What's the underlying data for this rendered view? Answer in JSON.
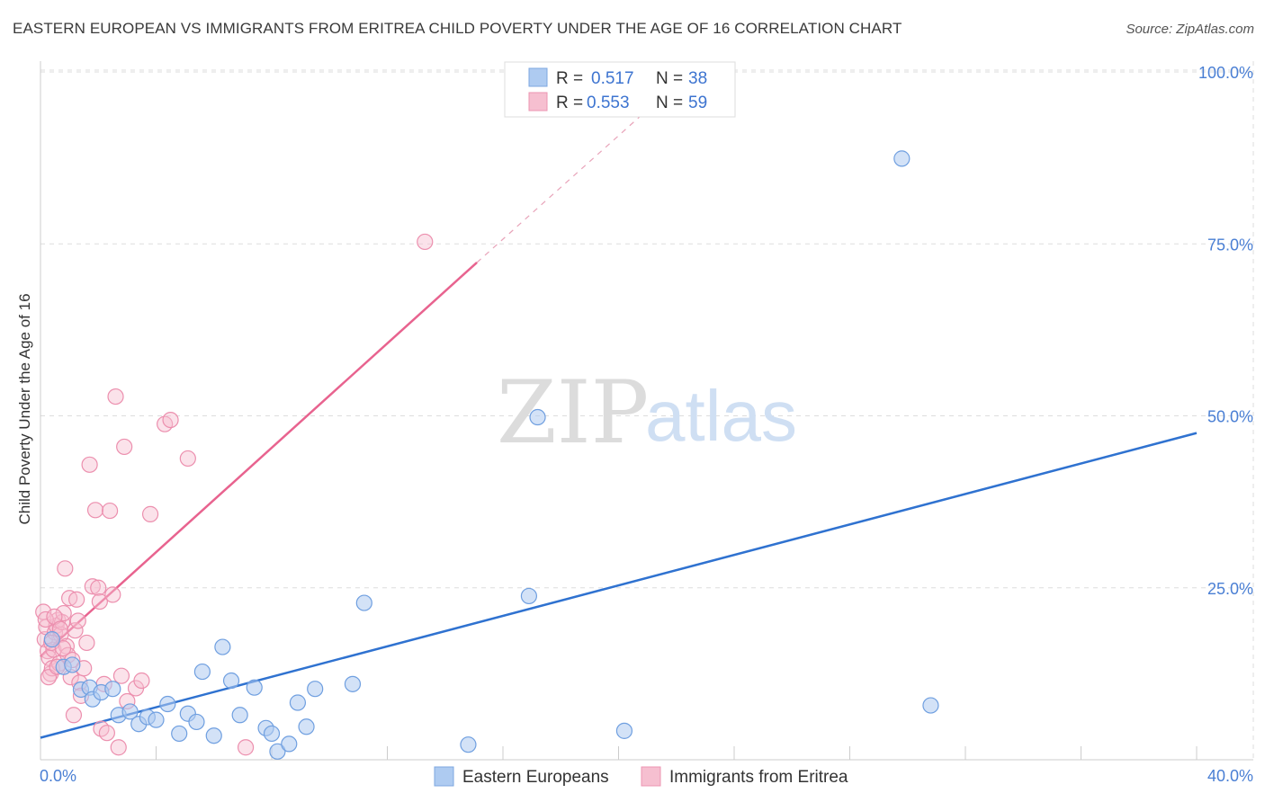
{
  "title": "EASTERN EUROPEAN VS IMMIGRANTS FROM ERITREA CHILD POVERTY UNDER THE AGE OF 16 CORRELATION CHART",
  "source": "Source: ZipAtlas.com",
  "watermark": {
    "zip": "ZIP",
    "atlas": "atlas"
  },
  "colors": {
    "blue": "#2f72d0",
    "blue_fill": "#aecbf1",
    "pink": "#e8638f",
    "pink_fill": "#f6bfd0",
    "grid": "#dddddd",
    "label": "#4a7fd4"
  },
  "chart_data": {
    "type": "scatter",
    "title": "EASTERN EUROPEAN VS IMMIGRANTS FROM ERITREA CHILD POVERTY UNDER THE AGE OF 16 CORRELATION CHART",
    "xlabel": "",
    "ylabel": "Child Poverty Under the Age of 16",
    "xlim": [
      0,
      40
    ],
    "ylim": [
      0,
      100
    ],
    "x_tick_labels": [
      "0.0%",
      "40.0%"
    ],
    "y_tick_labels": [
      "100.0%",
      "75.0%",
      "50.0%",
      "25.0%"
    ],
    "y_ticks": [
      100,
      75,
      50,
      25
    ],
    "legend": {
      "entries": [
        {
          "r_label": "R =",
          "r_value": "0.517",
          "n_label": "N =",
          "n_value": "38"
        },
        {
          "r_label": "R =",
          "r_value": "0.553",
          "n_label": "N =",
          "n_value": "59"
        }
      ]
    },
    "series": [
      {
        "name": "Eastern Europeans",
        "color": "#2f72d0",
        "trend": {
          "x0": 0,
          "y0": 3.2,
          "x1": 40,
          "y1": 47.5
        },
        "points": [
          [
            0.4,
            17.5
          ],
          [
            0.8,
            13.5
          ],
          [
            1.1,
            13.8
          ],
          [
            1.4,
            10.2
          ],
          [
            1.7,
            10.5
          ],
          [
            1.8,
            8.8
          ],
          [
            2.1,
            9.8
          ],
          [
            2.5,
            10.3
          ],
          [
            2.7,
            6.5
          ],
          [
            3.1,
            7.0
          ],
          [
            3.4,
            5.2
          ],
          [
            3.7,
            6.2
          ],
          [
            4.0,
            5.8
          ],
          [
            4.4,
            8.1
          ],
          [
            4.8,
            3.8
          ],
          [
            5.1,
            6.7
          ],
          [
            5.4,
            5.5
          ],
          [
            5.6,
            12.8
          ],
          [
            6.0,
            3.5
          ],
          [
            6.3,
            16.4
          ],
          [
            6.6,
            11.5
          ],
          [
            6.9,
            6.5
          ],
          [
            7.4,
            10.5
          ],
          [
            7.8,
            4.6
          ],
          [
            8.0,
            3.8
          ],
          [
            8.2,
            1.2
          ],
          [
            8.6,
            2.3
          ],
          [
            8.9,
            8.3
          ],
          [
            9.2,
            4.8
          ],
          [
            9.5,
            10.3
          ],
          [
            10.8,
            11.0
          ],
          [
            11.2,
            22.8
          ],
          [
            14.8,
            2.2
          ],
          [
            16.9,
            23.8
          ],
          [
            17.2,
            49.8
          ],
          [
            20.2,
            4.2
          ],
          [
            29.8,
            87.4
          ],
          [
            30.8,
            7.9
          ]
        ]
      },
      {
        "name": "Immigrants from Eritrea",
        "color": "#e8638f",
        "trend": {
          "x0": 0,
          "y0": 15.0,
          "x1": 15.1,
          "y1": 72.3,
          "dash_x1": 21.0,
          "dash_y1": 94.5
        },
        "points": [
          [
            0.1,
            21.5
          ],
          [
            0.15,
            17.5
          ],
          [
            0.2,
            19.3
          ],
          [
            0.25,
            15.8
          ],
          [
            0.3,
            14.8
          ],
          [
            0.35,
            12.5
          ],
          [
            0.4,
            13.3
          ],
          [
            0.45,
            16.0
          ],
          [
            0.5,
            18.5
          ],
          [
            0.55,
            19.5
          ],
          [
            0.6,
            20.3
          ],
          [
            0.65,
            14.0
          ],
          [
            0.7,
            18.2
          ],
          [
            0.75,
            20.0
          ],
          [
            0.8,
            21.3
          ],
          [
            0.85,
            27.8
          ],
          [
            0.9,
            16.5
          ],
          [
            0.95,
            15.2
          ],
          [
            1.0,
            23.5
          ],
          [
            1.05,
            12.0
          ],
          [
            1.1,
            14.5
          ],
          [
            1.15,
            6.5
          ],
          [
            1.2,
            18.8
          ],
          [
            1.25,
            23.3
          ],
          [
            1.3,
            20.2
          ],
          [
            1.35,
            11.2
          ],
          [
            1.4,
            9.3
          ],
          [
            1.5,
            13.3
          ],
          [
            1.6,
            17.0
          ],
          [
            1.7,
            42.9
          ],
          [
            1.8,
            25.2
          ],
          [
            1.9,
            36.3
          ],
          [
            2.0,
            25.0
          ],
          [
            2.05,
            23.0
          ],
          [
            2.1,
            4.5
          ],
          [
            2.2,
            11.0
          ],
          [
            2.3,
            3.9
          ],
          [
            2.4,
            36.2
          ],
          [
            2.5,
            24.0
          ],
          [
            2.6,
            52.8
          ],
          [
            2.7,
            1.8
          ],
          [
            2.8,
            12.2
          ],
          [
            2.9,
            45.5
          ],
          [
            3.0,
            8.5
          ],
          [
            3.3,
            10.4
          ],
          [
            3.5,
            11.5
          ],
          [
            3.8,
            35.7
          ],
          [
            4.3,
            48.8
          ],
          [
            4.5,
            49.4
          ],
          [
            5.1,
            43.8
          ],
          [
            7.1,
            1.8
          ],
          [
            13.3,
            75.3
          ],
          [
            0.18,
            20.4
          ],
          [
            0.28,
            12.0
          ],
          [
            0.38,
            17.0
          ],
          [
            0.48,
            20.8
          ],
          [
            0.58,
            13.5
          ],
          [
            0.68,
            19.0
          ],
          [
            0.78,
            16.2
          ]
        ]
      }
    ]
  },
  "bottom_legend": {
    "items": [
      "Eastern Europeans",
      "Immigrants from Eritrea"
    ]
  }
}
